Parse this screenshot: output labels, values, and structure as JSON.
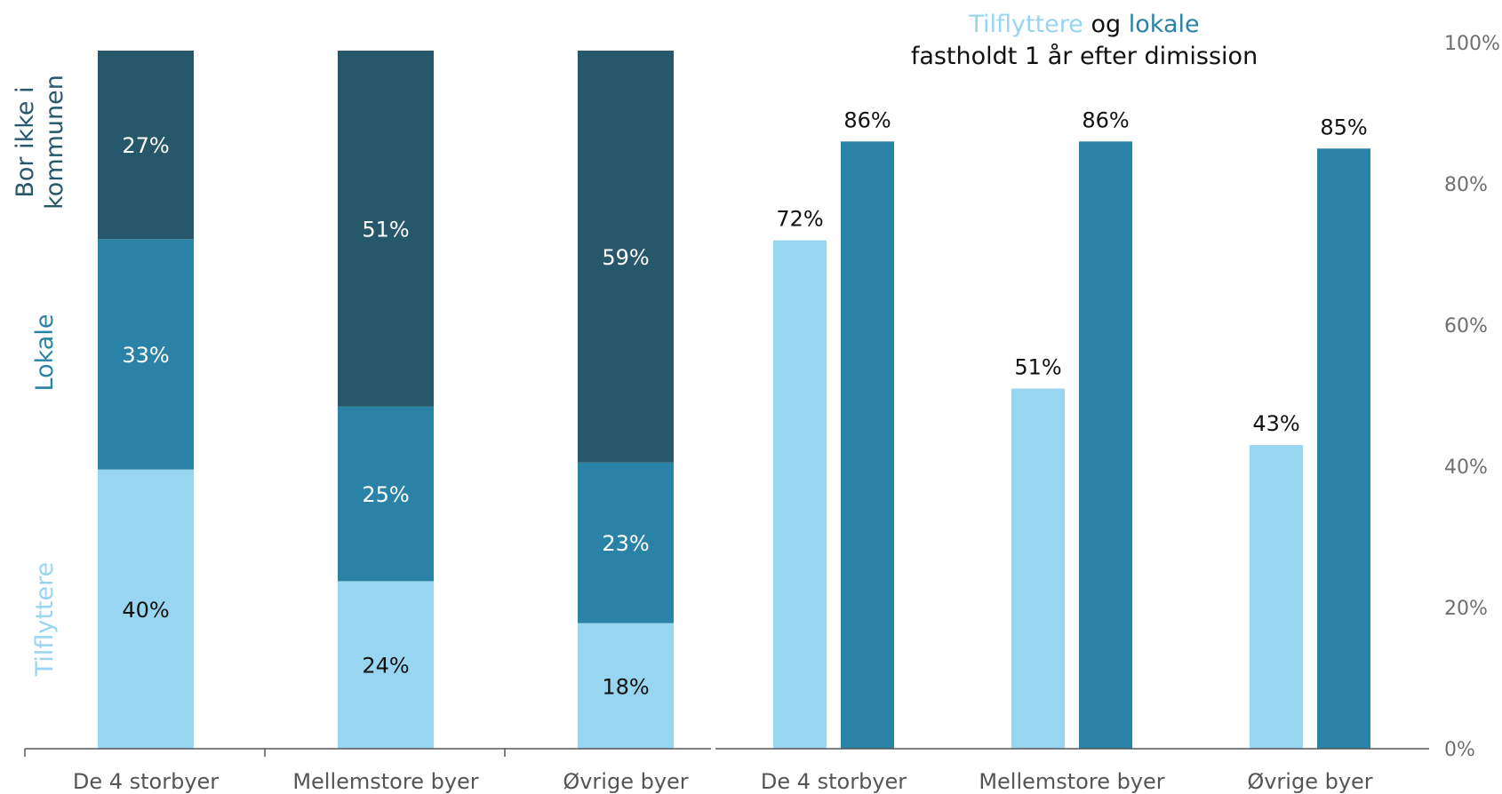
{
  "colors": {
    "tilflyttere": "#98d5f0",
    "lokale": "#2a83a6",
    "bor_ikke": "#27576b",
    "axis": "#555555",
    "label_dark": "#111111",
    "label_light": "#ffffff"
  },
  "side_labels": {
    "bor_ikke": [
      "Bor ikke i",
      "kommunen"
    ],
    "lokale": "Lokale",
    "tilflyttere": "Tilflyttere"
  },
  "chart_data": [
    {
      "type": "bar",
      "stacked": true,
      "categories": [
        "De 4 storbyer",
        "Mellemstore byer",
        "Øvrige byer"
      ],
      "series": [
        {
          "name": "Tilflyttere",
          "values": [
            40,
            24,
            18
          ],
          "labels": [
            "40%",
            "24%",
            "18%"
          ]
        },
        {
          "name": "Lokale",
          "values": [
            33,
            25,
            23
          ],
          "labels": [
            "33%",
            "25%",
            "23%"
          ]
        },
        {
          "name": "Bor ikke i kommunen",
          "values": [
            27,
            51,
            59
          ],
          "labels": [
            "27%",
            "51%",
            "59%"
          ]
        }
      ],
      "ylim": [
        0,
        100
      ]
    },
    {
      "type": "bar",
      "title_parts": [
        "Tilflyttere",
        "og",
        "lokale"
      ],
      "title_line2": "fastholdt 1 år efter dimission",
      "categories": [
        "De 4 storbyer",
        "Mellemstore byer",
        "Øvrige byer"
      ],
      "series": [
        {
          "name": "Tilflyttere",
          "values": [
            72,
            51,
            43
          ],
          "labels": [
            "72%",
            "51%",
            "43%"
          ]
        },
        {
          "name": "Lokale",
          "values": [
            86,
            86,
            85
          ],
          "labels": [
            "86%",
            "86%",
            "85%"
          ]
        }
      ],
      "ylim": [
        0,
        100
      ],
      "yticks": [
        "0%",
        "20%",
        "40%",
        "60%",
        "80%",
        "100%"
      ],
      "ytick_values": [
        0,
        20,
        40,
        60,
        80,
        100
      ],
      "y_axis_position": "right"
    }
  ]
}
